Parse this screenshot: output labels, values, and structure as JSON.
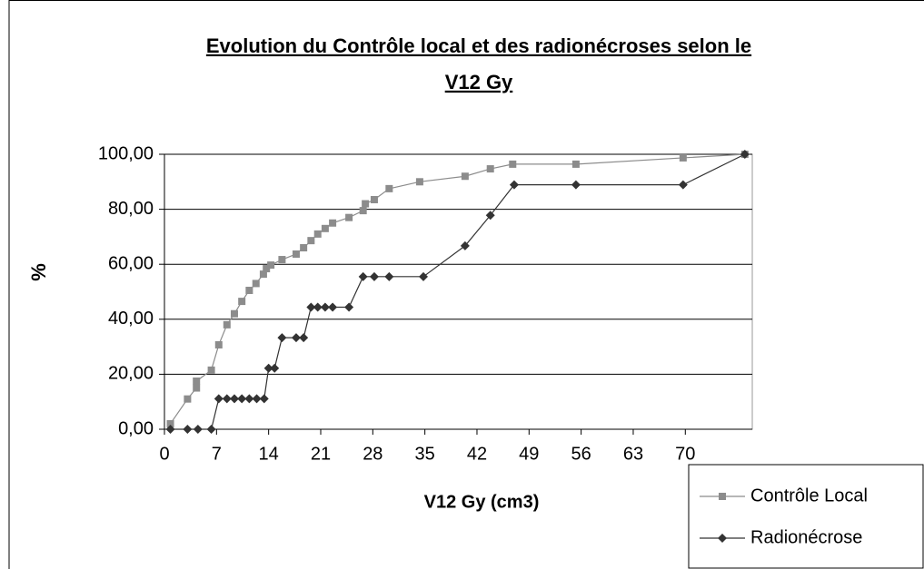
{
  "chart_data": {
    "type": "line",
    "title": [
      "Evolution du Contrôle local et des radionécroses selon le",
      "V12 Gy"
    ],
    "x_label": "V12 Gy (cm3)",
    "y_label": "%",
    "xlim": [
      0,
      79
    ],
    "ylim": [
      0,
      100
    ],
    "xticks": [
      0,
      7,
      14,
      21,
      28,
      35,
      42,
      49,
      56,
      63,
      70
    ],
    "yticks": [
      {
        "value": 0,
        "label": "0,00"
      },
      {
        "value": 20,
        "label": "20,00"
      },
      {
        "value": 40,
        "label": "40,00"
      },
      {
        "value": 60,
        "label": "60,00"
      },
      {
        "value": 80,
        "label": "80,00"
      },
      {
        "value": 100,
        "label": "100,00"
      }
    ],
    "grid": true,
    "legend": "bottom-right",
    "series": [
      {
        "name": "Contrôle Local",
        "color": "#8c8c8c",
        "marker": "square",
        "x": [
          0.8,
          3.1,
          4.3,
          4.3,
          6.3,
          7.3,
          8.4,
          9.4,
          10.4,
          11.4,
          12.3,
          13.3,
          13.7,
          14.3,
          15.8,
          17.7,
          18.7,
          19.7,
          20.6,
          21.6,
          22.6,
          24.8,
          26.7,
          27,
          28.2,
          30.2,
          34.3,
          40.4,
          43.8,
          46.8,
          55.3,
          69.7,
          78
        ],
        "values": [
          2,
          11,
          15,
          17.5,
          21.5,
          30.7,
          38,
          42,
          46.5,
          50.5,
          53,
          56.4,
          58.4,
          59.7,
          61.7,
          63.7,
          66,
          68.6,
          71,
          73,
          75,
          77,
          79.5,
          82,
          83.5,
          87.5,
          90,
          92,
          94.7,
          96.4,
          96.4,
          98.7,
          100
        ]
      },
      {
        "name": "Radionécrose",
        "color": "#333333",
        "marker": "diamond",
        "x": [
          0.8,
          3.1,
          4.5,
          6.3,
          7.3,
          8.4,
          9.4,
          10.4,
          11.4,
          12.4,
          13.4,
          14,
          14.8,
          15.8,
          17.7,
          18.7,
          19.7,
          20.6,
          21.6,
          22.6,
          24.8,
          26.7,
          28.2,
          30.2,
          34.8,
          40.4,
          43.8,
          47,
          55.3,
          69.7,
          78
        ],
        "values": [
          0,
          0,
          0,
          0,
          11.1,
          11.1,
          11.1,
          11.1,
          11.1,
          11.1,
          11.1,
          22.2,
          22.2,
          33.3,
          33.3,
          33.3,
          44.4,
          44.4,
          44.4,
          44.4,
          44.4,
          55.5,
          55.5,
          55.5,
          55.5,
          66.7,
          77.8,
          88.9,
          88.9,
          88.9,
          100
        ]
      }
    ]
  }
}
